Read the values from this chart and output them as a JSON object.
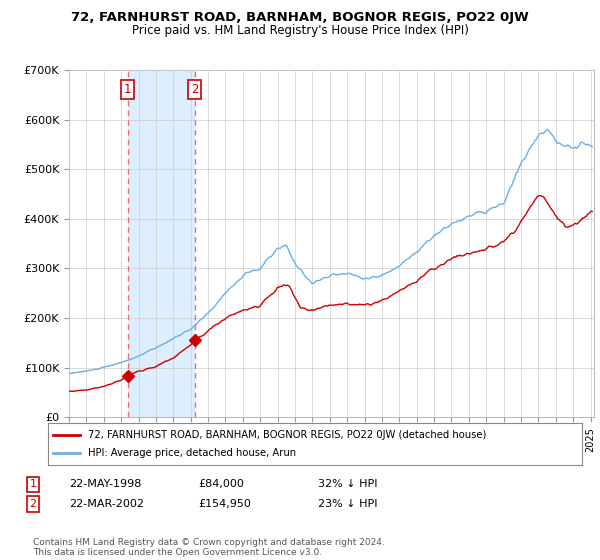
{
  "title": "72, FARNHURST ROAD, BARNHAM, BOGNOR REGIS, PO22 0JW",
  "subtitle": "Price paid vs. HM Land Registry's House Price Index (HPI)",
  "legend_line1": "72, FARNHURST ROAD, BARNHAM, BOGNOR REGIS, PO22 0JW (detached house)",
  "legend_line2": "HPI: Average price, detached house, Arun",
  "sale1_date": "22-MAY-1998",
  "sale1_price": "£84,000",
  "sale1_hpi": "32% ↓ HPI",
  "sale1_year": 1998.38,
  "sale1_value": 84000,
  "sale2_date": "22-MAR-2002",
  "sale2_price": "£154,950",
  "sale2_hpi": "23% ↓ HPI",
  "sale2_year": 2002.22,
  "sale2_value": 154950,
  "footer": "Contains HM Land Registry data © Crown copyright and database right 2024.\nThis data is licensed under the Open Government Licence v3.0.",
  "hpi_color": "#6aafe6",
  "price_color": "#cc0000",
  "vline_color": "#e87070",
  "shade_color": "#ddeeff",
  "bg_color": "#ffffff",
  "ylim": [
    0,
    700000
  ],
  "yticks": [
    0,
    100000,
    200000,
    300000,
    400000,
    500000,
    600000,
    700000
  ],
  "xlim_start": 1995.0,
  "xlim_end": 2025.2
}
